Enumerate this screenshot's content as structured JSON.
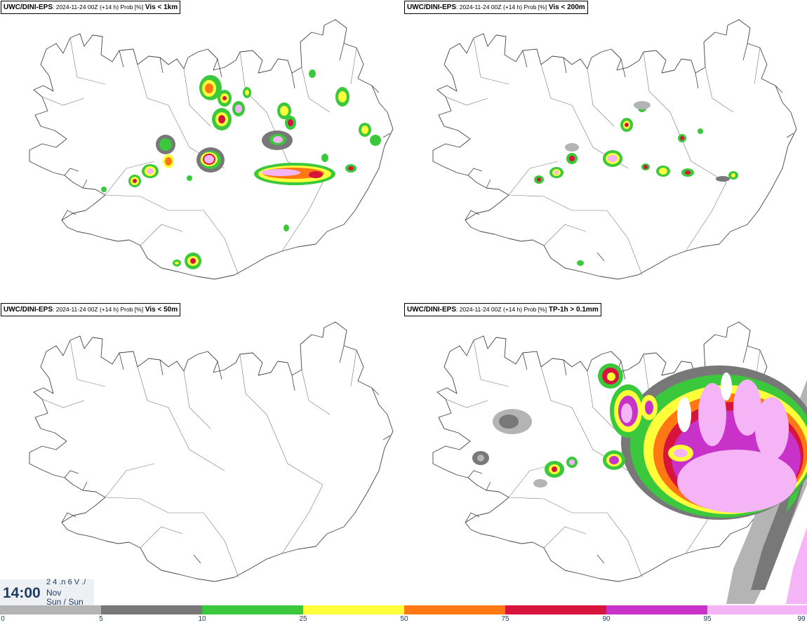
{
  "panels": [
    {
      "source": "UWC/DINI-EPS",
      "meta": ": 2024-11-24 00Z (+14 h) Prob [%]",
      "variable": "Vis < 1km"
    },
    {
      "source": "UWC/DINI-EPS",
      "meta": ": 2024-11-24 00Z (+14 h) Prob [%]",
      "variable": "Vis < 200m"
    },
    {
      "source": "UWC/DINI-EPS",
      "meta": ": 2024-11-24 00Z (+14 h) Prob [%]",
      "variable": "Vis < 50m"
    },
    {
      "source": "UWC/DINI-EPS",
      "meta": ": 2024-11-24 00Z (+14 h) Prob [%]",
      "variable": "TP-1h > 0.1mm"
    }
  ],
  "time_box": {
    "time": "14:00",
    "top_text": "2 4 .n 6 V ./",
    "month": "Nov",
    "day": "Sun / Sun"
  },
  "legend": {
    "ticks": [
      "0",
      "5",
      "10",
      "25",
      "50",
      "75",
      "90",
      "95",
      "99"
    ],
    "colors": [
      "#ffffff",
      "#b4b4b4",
      "#787878",
      "#3cc83c",
      "#ffff3c",
      "#ff7814",
      "#d7143c",
      "#c832c8",
      "#f5b4f5"
    ]
  },
  "colors": {
    "gray1": "#b4b4b4",
    "gray2": "#787878",
    "green": "#3cc83c",
    "yellow": "#ffff3c",
    "orange": "#ff7814",
    "red": "#d7143c",
    "magenta": "#c832c8",
    "pink": "#f5b4f5"
  }
}
